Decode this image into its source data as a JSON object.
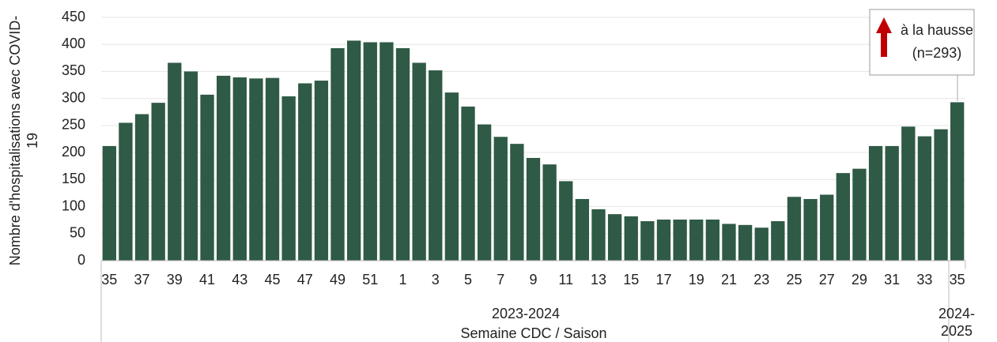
{
  "chart_data": {
    "type": "bar",
    "ylabel": "Nombre d'hospitalisations avec COVID-19",
    "xlabel": "Semaine CDC / Saison",
    "seasons": [
      "2023-2024",
      "2024-2025"
    ],
    "annotation": {
      "text": "à la hausse",
      "count": "(n=293)"
    },
    "categories": [
      "35",
      null,
      "37",
      null,
      "39",
      null,
      "41",
      null,
      "43",
      null,
      "45",
      null,
      "47",
      null,
      "49",
      null,
      "51",
      null,
      "1",
      null,
      "3",
      null,
      "5",
      null,
      "7",
      null,
      "9",
      null,
      "11",
      null,
      "13",
      null,
      "15",
      null,
      "17",
      null,
      "19",
      null,
      "21",
      null,
      "23",
      null,
      "25",
      null,
      "27",
      null,
      "29",
      null,
      "31",
      null,
      "33",
      null,
      "35"
    ],
    "values": [
      212,
      255,
      271,
      292,
      366,
      350,
      307,
      342,
      339,
      337,
      338,
      304,
      328,
      333,
      393,
      407,
      404,
      404,
      393,
      366,
      352,
      311,
      285,
      252,
      229,
      216,
      190,
      178,
      147,
      114,
      95,
      86,
      82,
      73,
      76,
      76,
      76,
      76,
      68,
      66,
      61,
      73,
      118,
      114,
      122,
      162,
      170,
      212,
      212,
      248,
      230,
      243,
      293
    ],
    "color": "#2f5a45",
    "ylim": [
      0,
      450
    ],
    "yticks": [
      0,
      50,
      100,
      150,
      200,
      250,
      300,
      350,
      400,
      450
    ],
    "grid": true
  }
}
